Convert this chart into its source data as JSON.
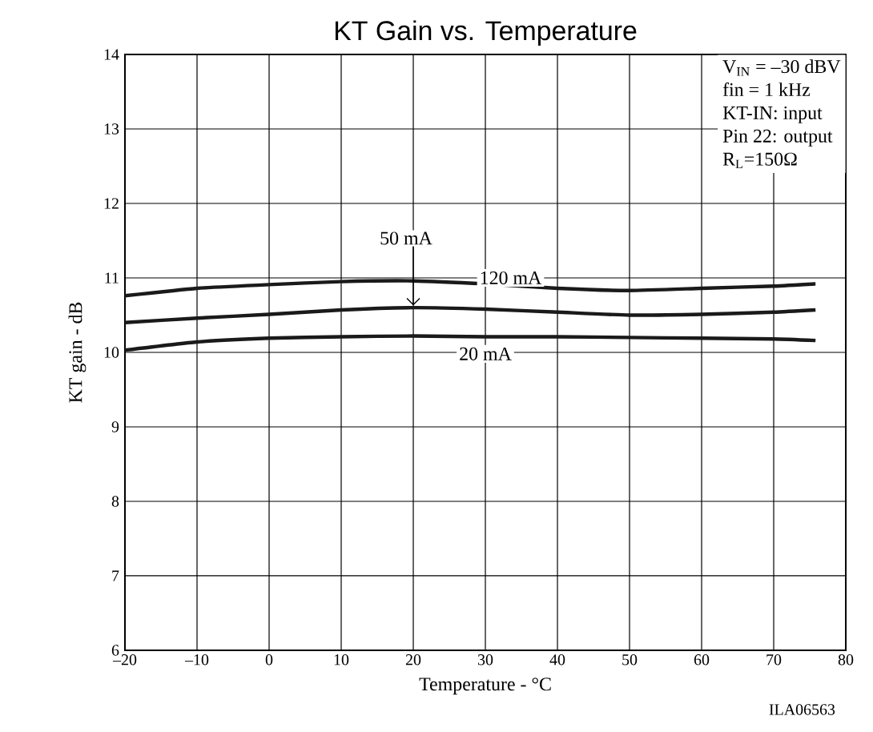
{
  "chart_data": {
    "type": "line",
    "title": "KT Gain vs. Temperature",
    "xlabel": "Temperature - °C",
    "ylabel": "KT gain - dB",
    "x": [
      -20,
      -10,
      0,
      10,
      20,
      30,
      40,
      50,
      60,
      70,
      75.8
    ],
    "series": [
      {
        "name": "120 mA",
        "color": "#1a1a1a",
        "values": [
          10.76,
          10.86,
          10.91,
          10.95,
          10.96,
          10.92,
          10.86,
          10.83,
          10.86,
          10.89,
          10.92
        ]
      },
      {
        "name": "50 mA",
        "color": "#1a1a1a",
        "values": [
          10.4,
          10.46,
          10.51,
          10.57,
          10.6,
          10.58,
          10.54,
          10.5,
          10.51,
          10.54,
          10.57
        ]
      },
      {
        "name": "20 mA",
        "color": "#1a1a1a",
        "values": [
          10.03,
          10.14,
          10.19,
          10.21,
          10.22,
          10.21,
          10.21,
          10.2,
          10.19,
          10.18,
          10.16
        ]
      }
    ],
    "xlim": [
      -20,
      80
    ],
    "ylim": [
      6,
      14
    ],
    "xticks": [
      {
        "value": -20,
        "label": "–20"
      },
      {
        "value": -10,
        "label": "–10"
      },
      0,
      10,
      20,
      30,
      40,
      50,
      60,
      70,
      80
    ],
    "yticks": [
      6,
      7,
      8,
      9,
      10,
      11,
      12,
      13,
      14
    ],
    "grid": true,
    "legend": false,
    "marker": "none",
    "line_style": "solid",
    "annotations": [
      "V$_{IN}$ = –30 dBV",
      "fin = 1 kHz",
      "KT-IN: input",
      "Pin 22: output",
      "R$_{L}$=150Ω",
      "ILA06563"
    ]
  }
}
